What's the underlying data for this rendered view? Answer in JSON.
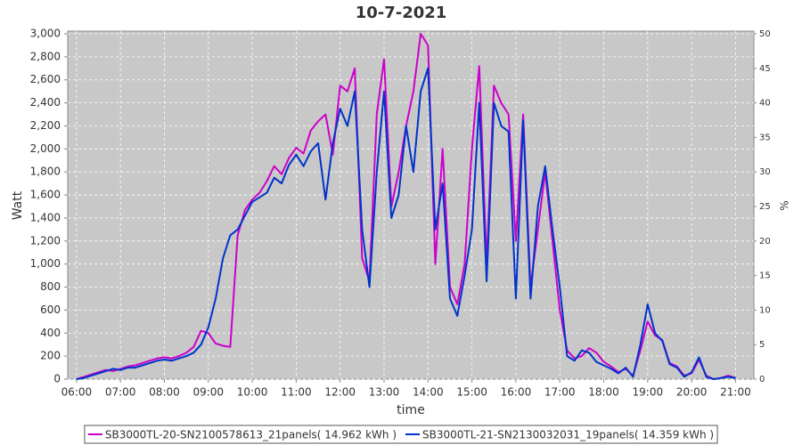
{
  "chart_data": {
    "type": "line",
    "title": "10-7-2021",
    "x_label": "time",
    "y_label": "Watt",
    "y2_label": "%",
    "x": [
      "06:00",
      "06:10",
      "06:20",
      "06:30",
      "06:40",
      "06:50",
      "07:00",
      "07:10",
      "07:20",
      "07:30",
      "07:40",
      "07:50",
      "08:00",
      "08:10",
      "08:20",
      "08:30",
      "08:40",
      "08:50",
      "09:00",
      "09:10",
      "09:20",
      "09:30",
      "09:40",
      "09:50",
      "10:00",
      "10:10",
      "10:20",
      "10:30",
      "10:40",
      "10:50",
      "11:00",
      "11:10",
      "11:20",
      "11:30",
      "11:40",
      "11:50",
      "12:00",
      "12:10",
      "12:20",
      "12:30",
      "12:40",
      "12:50",
      "13:00",
      "13:10",
      "13:20",
      "13:30",
      "13:40",
      "13:50",
      "14:00",
      "14:10",
      "14:20",
      "14:30",
      "14:40",
      "14:50",
      "15:00",
      "15:10",
      "15:20",
      "15:30",
      "15:40",
      "15:50",
      "16:00",
      "16:10",
      "16:20",
      "16:30",
      "16:40",
      "16:50",
      "17:00",
      "17:10",
      "17:20",
      "17:30",
      "17:40",
      "17:50",
      "18:00",
      "18:10",
      "18:20",
      "18:30",
      "18:40",
      "18:50",
      "19:00",
      "19:10",
      "19:20",
      "19:30",
      "19:40",
      "19:50",
      "20:00",
      "20:10",
      "20:20",
      "20:30",
      "20:40",
      "20:50",
      "21:00"
    ],
    "series": [
      {
        "name": "SB3000TL-20-SN2100578613_21panels( 14.962 kWh )",
        "color": "#cc00cc",
        "values": [
          0,
          20,
          40,
          60,
          80,
          70,
          90,
          110,
          120,
          140,
          160,
          180,
          190,
          180,
          200,
          230,
          280,
          420,
          400,
          310,
          290,
          280,
          1250,
          1470,
          1560,
          1620,
          1720,
          1850,
          1780,
          1920,
          2010,
          1960,
          2160,
          2240,
          2300,
          1950,
          2550,
          2500,
          2700,
          1050,
          850,
          2300,
          2780,
          1500,
          1800,
          2200,
          2500,
          3000,
          2900,
          1000,
          2000,
          800,
          650,
          1000,
          2000,
          2720,
          1000,
          2550,
          2400,
          2300,
          1200,
          2300,
          800,
          1300,
          1800,
          1200,
          600,
          250,
          180,
          200,
          270,
          230,
          150,
          110,
          60,
          90,
          30,
          250,
          500,
          380,
          340,
          140,
          110,
          30,
          50,
          170,
          30,
          0,
          10,
          30,
          10
        ]
      },
      {
        "name": "SB3000TL-21-SN2130032031_19panels( 14.359 kWh )",
        "color": "#0033cc",
        "values": [
          0,
          10,
          30,
          50,
          70,
          90,
          80,
          100,
          100,
          120,
          140,
          160,
          170,
          160,
          180,
          200,
          230,
          300,
          450,
          700,
          1050,
          1250,
          1300,
          1420,
          1540,
          1580,
          1620,
          1750,
          1700,
          1860,
          1950,
          1850,
          1980,
          2050,
          1560,
          2050,
          2350,
          2200,
          2500,
          1300,
          800,
          1800,
          2500,
          1400,
          1600,
          2200,
          1800,
          2500,
          2700,
          1300,
          1700,
          700,
          550,
          900,
          1300,
          2400,
          850,
          2400,
          2200,
          2150,
          700,
          2250,
          700,
          1500,
          1850,
          1300,
          800,
          200,
          160,
          250,
          230,
          150,
          120,
          90,
          50,
          100,
          20,
          300,
          650,
          400,
          330,
          130,
          100,
          20,
          60,
          190,
          20,
          0,
          10,
          20,
          10
        ]
      }
    ],
    "xlim": [
      "05:48",
      "21:25"
    ],
    "xticks": [
      "06:00",
      "07:00",
      "08:00",
      "09:00",
      "10:00",
      "11:00",
      "12:00",
      "13:00",
      "14:00",
      "15:00",
      "16:00",
      "17:00",
      "18:00",
      "19:00",
      "20:00",
      "21:00"
    ],
    "ylim": [
      0,
      3000
    ],
    "yticks": [
      0,
      200,
      400,
      600,
      800,
      {
        "value": 1000,
        "label": "1,000"
      },
      {
        "value": 1200,
        "label": "1,200"
      },
      {
        "value": 1400,
        "label": "1,400"
      },
      {
        "value": 1600,
        "label": "1,600"
      },
      {
        "value": 1800,
        "label": "1,800"
      },
      {
        "value": 2000,
        "label": "2,000"
      },
      {
        "value": 2200,
        "label": "2,200"
      },
      {
        "value": 2400,
        "label": "2,400"
      },
      {
        "value": 2600,
        "label": "2,600"
      },
      {
        "value": 2800,
        "label": "2,800"
      },
      {
        "value": 3000,
        "label": "3,000"
      }
    ],
    "y2lim": [
      0,
      50
    ],
    "y2ticks": [
      0,
      5,
      10,
      15,
      20,
      25,
      30,
      35,
      40,
      45,
      50
    ],
    "grid": true,
    "legend": "bottom"
  }
}
